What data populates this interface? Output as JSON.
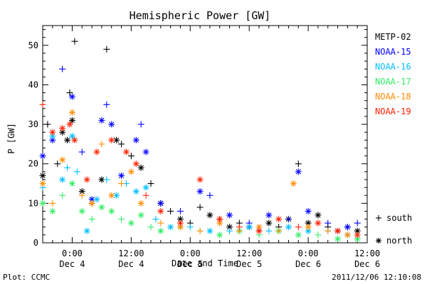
{
  "chart_data": {
    "type": "scatter",
    "title": "Hemispheric Power [GW]",
    "ylabel": "P [GW]",
    "xlabel": "Date and Time",
    "ylim": [
      0,
      55
    ],
    "xlim": [
      "2011-12-03 18:00",
      "2011-12-06 12:00"
    ],
    "yticks": [
      0,
      10,
      20,
      30,
      40,
      50
    ],
    "xticks": [
      {
        "time": "2011-12-04 00:00",
        "label1": "0:00",
        "label2": "Dec 4"
      },
      {
        "time": "2011-12-04 12:00",
        "label1": "12:00",
        "label2": "Dec 4"
      },
      {
        "time": "2011-12-05 00:00",
        "label1": "0:00",
        "label2": "Dec 5"
      },
      {
        "time": "2011-12-05 12:00",
        "label1": "12:00",
        "label2": "Dec 5"
      },
      {
        "time": "2011-12-06 00:00",
        "label1": "0:00",
        "label2": "Dec 6"
      },
      {
        "time": "2011-12-06 12:00",
        "label1": "12:00",
        "label2": "Dec 6"
      }
    ],
    "marker_legend": [
      {
        "symbol": "+",
        "label": "south"
      },
      {
        "symbol": "*",
        "label": "north"
      }
    ],
    "series": [
      {
        "name": "METP-02",
        "color": "#000000",
        "points": [
          [
            "2011-12-03 18:00",
            17,
            "*"
          ],
          [
            "2011-12-03 19:00",
            30,
            "+"
          ],
          [
            "2011-12-03 21:00",
            20,
            "+"
          ],
          [
            "2011-12-03 22:00",
            28,
            "*"
          ],
          [
            "2011-12-03 23:00",
            26,
            "*"
          ],
          [
            "2011-12-03 23:30",
            38,
            "+"
          ],
          [
            "2011-12-04 00:00",
            31,
            "*"
          ],
          [
            "2011-12-04 00:30",
            51,
            "+"
          ],
          [
            "2011-12-04 02:00",
            13,
            "*"
          ],
          [
            "2011-12-04 04:00",
            10,
            "+"
          ],
          [
            "2011-12-04 06:00",
            16,
            "*"
          ],
          [
            "2011-12-04 07:00",
            49,
            "+"
          ],
          [
            "2011-12-04 09:00",
            26,
            "*"
          ],
          [
            "2011-12-04 10:00",
            25,
            "+"
          ],
          [
            "2011-12-04 12:00",
            22,
            "+"
          ],
          [
            "2011-12-04 14:00",
            19,
            "*"
          ],
          [
            "2011-12-04 16:00",
            15,
            "+"
          ],
          [
            "2011-12-04 18:00",
            10,
            "*"
          ],
          [
            "2011-12-04 20:00",
            8,
            "+"
          ],
          [
            "2011-12-04 22:00",
            6,
            "*"
          ],
          [
            "2011-12-05 00:00",
            5,
            "+"
          ],
          [
            "2011-12-05 02:00",
            9,
            "+"
          ],
          [
            "2011-12-05 04:00",
            7,
            "*"
          ],
          [
            "2011-12-05 06:00",
            6,
            "+"
          ],
          [
            "2011-12-05 08:00",
            4,
            "*"
          ],
          [
            "2011-12-05 10:00",
            5,
            "+"
          ],
          [
            "2011-12-05 12:00",
            4,
            "*"
          ],
          [
            "2011-12-05 14:00",
            3,
            "+"
          ],
          [
            "2011-12-05 16:00",
            5,
            "*"
          ],
          [
            "2011-12-05 18:00",
            4,
            "+"
          ],
          [
            "2011-12-05 20:00",
            6,
            "*"
          ],
          [
            "2011-12-05 22:00",
            20,
            "+"
          ],
          [
            "2011-12-06 00:00",
            5,
            "*"
          ],
          [
            "2011-12-06 02:00",
            7,
            "*"
          ],
          [
            "2011-12-06 04:00",
            4,
            "+"
          ],
          [
            "2011-12-06 06:00",
            3,
            "*"
          ],
          [
            "2011-12-06 08:00",
            4,
            "+"
          ],
          [
            "2011-12-06 10:00",
            3,
            "*"
          ]
        ]
      },
      {
        "name": "NOAA-15",
        "color": "#0000ff",
        "points": [
          [
            "2011-12-03 18:00",
            22,
            "*"
          ],
          [
            "2011-12-03 20:00",
            26,
            "*"
          ],
          [
            "2011-12-03 22:00",
            44,
            "+"
          ],
          [
            "2011-12-04 00:00",
            37,
            "*"
          ],
          [
            "2011-12-04 02:00",
            23,
            "+"
          ],
          [
            "2011-12-04 04:00",
            11,
            "*"
          ],
          [
            "2011-12-04 06:00",
            31,
            "*"
          ],
          [
            "2011-12-04 07:00",
            35,
            "+"
          ],
          [
            "2011-12-04 08:00",
            30,
            "*"
          ],
          [
            "2011-12-04 10:00",
            17,
            "*"
          ],
          [
            "2011-12-04 13:00",
            26,
            "*"
          ],
          [
            "2011-12-04 14:00",
            30,
            "+"
          ],
          [
            "2011-12-04 15:00",
            23,
            "*"
          ],
          [
            "2011-12-04 18:00",
            10,
            "*"
          ],
          [
            "2011-12-04 22:00",
            8,
            "+"
          ],
          [
            "2011-12-05 02:00",
            13,
            "*"
          ],
          [
            "2011-12-05 04:00",
            12,
            "+"
          ],
          [
            "2011-12-05 08:00",
            7,
            "*"
          ],
          [
            "2011-12-05 12:00",
            5,
            "+"
          ],
          [
            "2011-12-05 16:00",
            7,
            "*"
          ],
          [
            "2011-12-05 20:00",
            6,
            "+"
          ],
          [
            "2011-12-05 22:00",
            18,
            "*"
          ],
          [
            "2011-12-06 00:00",
            8,
            "*"
          ],
          [
            "2011-12-06 04:00",
            5,
            "+"
          ],
          [
            "2011-12-06 08:00",
            4,
            "*"
          ],
          [
            "2011-12-06 10:00",
            5,
            "+"
          ]
        ]
      },
      {
        "name": "NOAA-16",
        "color": "#00bfff",
        "points": [
          [
            "2011-12-03 18:00",
            14,
            "+"
          ],
          [
            "2011-12-03 20:00",
            27,
            "*"
          ],
          [
            "2011-12-03 22:00",
            16,
            "*"
          ],
          [
            "2011-12-03 23:00",
            19,
            "+"
          ],
          [
            "2011-12-04 00:00",
            27,
            "*"
          ],
          [
            "2011-12-04 01:00",
            18,
            "+"
          ],
          [
            "2011-12-04 03:00",
            3,
            "*"
          ],
          [
            "2011-12-04 05:00",
            11,
            "*"
          ],
          [
            "2011-12-04 07:00",
            16,
            "+"
          ],
          [
            "2011-12-04 09:00",
            12,
            "*"
          ],
          [
            "2011-12-04 11:00",
            15,
            "+"
          ],
          [
            "2011-12-04 13:00",
            13,
            "*"
          ],
          [
            "2011-12-04 15:00",
            14,
            "*"
          ],
          [
            "2011-12-04 17:00",
            6,
            "+"
          ],
          [
            "2011-12-04 20:00",
            4,
            "*"
          ],
          [
            "2011-12-05 00:00",
            4,
            "+"
          ],
          [
            "2011-12-05 04:00",
            3,
            "*"
          ],
          [
            "2011-12-05 08:00",
            3,
            "+"
          ],
          [
            "2011-12-05 12:00",
            4,
            "*"
          ],
          [
            "2011-12-05 16:00",
            3,
            "+"
          ],
          [
            "2011-12-05 20:00",
            4,
            "*"
          ],
          [
            "2011-12-06 00:00",
            3,
            "*"
          ],
          [
            "2011-12-06 04:00",
            3,
            "+"
          ],
          [
            "2011-12-06 08:00",
            2,
            "*"
          ]
        ]
      },
      {
        "name": "NOAA-17",
        "color": "#33ee66",
        "points": [
          [
            "2011-12-03 18:00",
            10,
            "*"
          ],
          [
            "2011-12-03 20:00",
            8,
            "*"
          ],
          [
            "2011-12-03 22:00",
            12,
            "+"
          ],
          [
            "2011-12-04 00:00",
            15,
            "*"
          ],
          [
            "2011-12-04 02:00",
            8,
            "*"
          ],
          [
            "2011-12-04 04:00",
            6,
            "+"
          ],
          [
            "2011-12-04 06:00",
            9,
            "*"
          ],
          [
            "2011-12-04 08:00",
            8,
            "*"
          ],
          [
            "2011-12-04 10:00",
            6,
            "+"
          ],
          [
            "2011-12-04 12:00",
            5,
            "*"
          ],
          [
            "2011-12-04 14:00",
            7,
            "*"
          ],
          [
            "2011-12-04 16:00",
            4,
            "+"
          ],
          [
            "2011-12-04 18:00",
            3,
            "*"
          ],
          [
            "2011-12-04 22:00",
            4,
            "*"
          ],
          [
            "2011-12-05 02:00",
            3,
            "+"
          ],
          [
            "2011-12-05 06:00",
            2,
            "*"
          ],
          [
            "2011-12-05 10:00",
            3,
            "*"
          ],
          [
            "2011-12-05 14:00",
            2,
            "+"
          ],
          [
            "2011-12-05 18:00",
            3,
            "*"
          ],
          [
            "2011-12-05 22:00",
            2,
            "*"
          ],
          [
            "2011-12-06 02:00",
            2,
            "+"
          ],
          [
            "2011-12-06 06:00",
            1,
            "*"
          ],
          [
            "2011-12-06 10:00",
            1,
            "*"
          ]
        ]
      },
      {
        "name": "NOAA-18",
        "color": "#ff8c00",
        "points": [
          [
            "2011-12-03 18:00",
            15,
            "*"
          ],
          [
            "2011-12-03 20:00",
            10,
            "+"
          ],
          [
            "2011-12-03 22:00",
            21,
            "*"
          ],
          [
            "2011-12-04 00:00",
            33,
            "*"
          ],
          [
            "2011-12-04 02:00",
            12,
            "+"
          ],
          [
            "2011-12-04 04:00",
            10,
            "*"
          ],
          [
            "2011-12-04 06:00",
            25,
            "+"
          ],
          [
            "2011-12-04 08:00",
            12,
            "*"
          ],
          [
            "2011-12-04 10:00",
            15,
            "+"
          ],
          [
            "2011-12-04 12:00",
            18,
            "*"
          ],
          [
            "2011-12-04 14:00",
            10,
            "*"
          ],
          [
            "2011-12-04 18:00",
            5,
            "+"
          ],
          [
            "2011-12-04 22:00",
            4,
            "*"
          ],
          [
            "2011-12-05 02:00",
            3,
            "+"
          ],
          [
            "2011-12-05 06:00",
            5,
            "*"
          ],
          [
            "2011-12-05 10:00",
            3,
            "+"
          ],
          [
            "2011-12-05 14:00",
            4,
            "*"
          ],
          [
            "2011-12-05 18:00",
            3,
            "+"
          ],
          [
            "2011-12-05 21:00",
            15,
            "*"
          ],
          [
            "2011-12-06 00:00",
            4,
            "*"
          ],
          [
            "2011-12-06 04:00",
            3,
            "+"
          ],
          [
            "2011-12-06 08:00",
            2,
            "*"
          ]
        ]
      },
      {
        "name": "NOAA-19",
        "color": "#ff2000",
        "points": [
          [
            "2011-12-03 18:00",
            35,
            "+"
          ],
          [
            "2011-12-03 20:00",
            28,
            "*"
          ],
          [
            "2011-12-03 22:00",
            29,
            "*"
          ],
          [
            "2011-12-03 23:30",
            30,
            "*"
          ],
          [
            "2011-12-04 00:30",
            26,
            "*"
          ],
          [
            "2011-12-04 03:00",
            16,
            "*"
          ],
          [
            "2011-12-04 05:00",
            23,
            "*"
          ],
          [
            "2011-12-04 08:00",
            26,
            "*"
          ],
          [
            "2011-12-04 11:00",
            23,
            "*"
          ],
          [
            "2011-12-04 13:00",
            20,
            "*"
          ],
          [
            "2011-12-04 15:00",
            12,
            "+"
          ],
          [
            "2011-12-04 18:00",
            8,
            "*"
          ],
          [
            "2011-12-04 22:00",
            5,
            "*"
          ],
          [
            "2011-12-05 02:00",
            16,
            "*"
          ],
          [
            "2011-12-05 06:00",
            6,
            "*"
          ],
          [
            "2011-12-05 10:00",
            4,
            "+"
          ],
          [
            "2011-12-05 14:00",
            3,
            "*"
          ],
          [
            "2011-12-05 18:00",
            6,
            "*"
          ],
          [
            "2011-12-05 22:00",
            4,
            "+"
          ],
          [
            "2011-12-06 02:00",
            5,
            "*"
          ],
          [
            "2011-12-06 06:00",
            3,
            "*"
          ],
          [
            "2011-12-06 10:00",
            2,
            "*"
          ]
        ]
      }
    ]
  },
  "footer": {
    "left": "Plot: CCMC",
    "right": "2011/12/06 12:10:08"
  }
}
